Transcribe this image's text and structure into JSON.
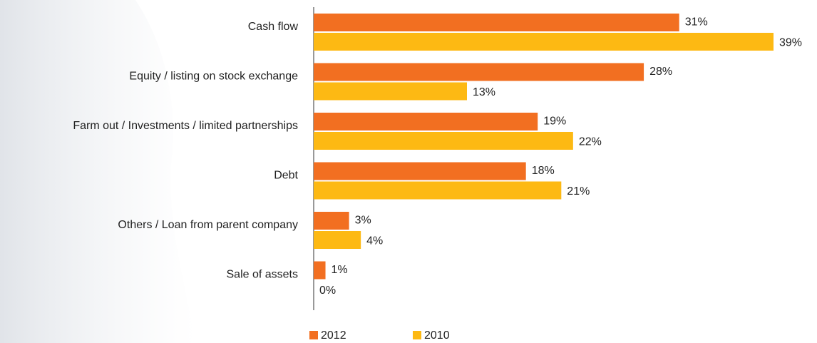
{
  "chart_data": {
    "type": "hbar",
    "categories": [
      "Cash flow",
      "Equity / listing on stock exchange",
      "Farm out / Investments / limited partnerships",
      "Debt",
      "Others / Loan from parent company",
      "Sale of assets"
    ],
    "series": [
      {
        "name": "2012",
        "color": "#f26f21",
        "values": [
          31,
          28,
          19,
          18,
          3,
          1
        ],
        "value_labels": [
          "31%",
          "28%",
          "19%",
          "18%",
          "3%",
          "1%"
        ]
      },
      {
        "name": "2010",
        "color": "#fdb913",
        "values": [
          39,
          13,
          22,
          21,
          4,
          0
        ],
        "value_labels": [
          "39%",
          "13%",
          "22%",
          "21%",
          "4%",
          "0%"
        ]
      }
    ],
    "legend": "bottom"
  }
}
